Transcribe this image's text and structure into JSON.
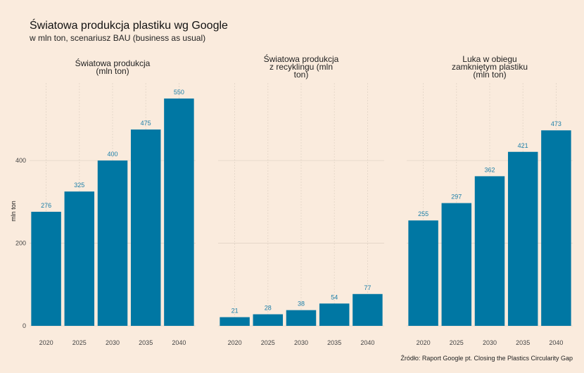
{
  "title": "Światowa produkcja plastiku wg Google",
  "subtitle": "w mln ton, scenariusz BAU (business as usual)",
  "source": "Źródło:  Raport Google pt. Closing the Plastics Circularity Gap",
  "colors": {
    "bar": "#0077a3",
    "label": "#1a7ea8",
    "background": "#faebdd",
    "grid": "#e2d4c6"
  },
  "chart_data": {
    "type": "bar",
    "ylabel": "mln ton",
    "ylim": [
      0,
      550
    ],
    "yticks": [
      0,
      200,
      400
    ],
    "categories": [
      "2020",
      "2025",
      "2030",
      "2035",
      "2040"
    ],
    "grid": true,
    "panels": [
      {
        "title_lines": [
          "Światowa produkcja",
          "(mln ton)"
        ],
        "values": [
          276,
          325,
          400,
          475,
          550
        ]
      },
      {
        "title_lines": [
          "Światowa produkcja",
          "z recyklingu (mln",
          "ton)"
        ],
        "values": [
          21,
          28,
          38,
          54,
          77
        ]
      },
      {
        "title_lines": [
          "Luka w obiegu",
          "zamkniętym plastiku",
          "(mln ton)"
        ],
        "values": [
          255,
          297,
          362,
          421,
          473
        ]
      }
    ]
  }
}
